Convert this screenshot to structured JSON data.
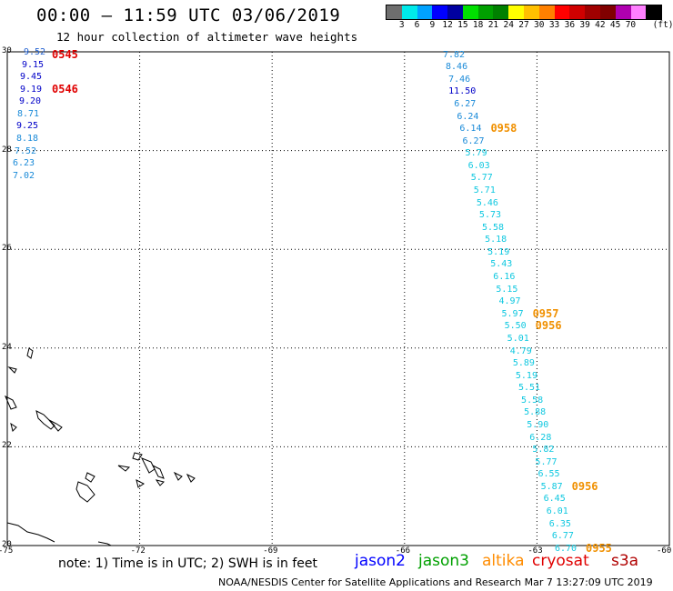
{
  "header": {
    "title": "00:00 – 11:59 UTC 03/06/2019",
    "subtitle": "12 hour collection of altimeter wave heights"
  },
  "colorbar": {
    "colors": [
      "#6e6e6e",
      "#00eaea",
      "#00a2ff",
      "#0000ff",
      "#0000a0",
      "#00e000",
      "#00a000",
      "#008000",
      "#ffff00",
      "#ffc000",
      "#ff8000",
      "#ff0000",
      "#d00000",
      "#a00000",
      "#800000",
      "#b000b0",
      "#ff80ff",
      "#000000"
    ],
    "labels": [
      "3",
      "6",
      "9",
      "12",
      "15",
      "18",
      "21",
      "24",
      "27",
      "30",
      "33",
      "36",
      "39",
      "42",
      "45",
      "70"
    ],
    "unit": "(ft)"
  },
  "axes": {
    "lat_labels": [
      "30",
      "28",
      "26",
      "24",
      "22",
      "20"
    ],
    "lon_labels": [
      "-75",
      "-72",
      "-69",
      "-66",
      "-63",
      "-60"
    ]
  },
  "tracks": {
    "track_west": {
      "points": [
        {
          "lat": 30.0,
          "swh": "9.52",
          "color": "#2060d0"
        },
        {
          "lat": 29.75,
          "swh": "9.15",
          "color": "#0000c8"
        },
        {
          "lat": 29.5,
          "swh": "9.45",
          "color": "#0000c8"
        },
        {
          "lat": 29.25,
          "swh": "9.19",
          "color": "#0000c8"
        },
        {
          "lat": 29.0,
          "swh": "9.20",
          "color": "#0000c8"
        },
        {
          "lat": 28.75,
          "swh": "8.71",
          "color": "#1a8ad8"
        },
        {
          "lat": 28.5,
          "swh": "9.25",
          "color": "#0000c8"
        },
        {
          "lat": 28.25,
          "swh": "8.18",
          "color": "#1a8ad8"
        },
        {
          "lat": 28.0,
          "swh": "7.52",
          "color": "#1a8ad8"
        },
        {
          "lat": 27.75,
          "swh": "6.23",
          "color": "#1a8ad8"
        },
        {
          "lat": 27.5,
          "swh": "7.02",
          "color": "#1a8ad8"
        }
      ],
      "times": [
        {
          "label": "0545",
          "lat": 29.95,
          "color": "#e00000"
        },
        {
          "label": "0546",
          "lat": 29.25,
          "color": "#e00000"
        }
      ]
    },
    "track_east": {
      "points": [
        {
          "lat": 29.95,
          "swh": "7.82",
          "color": "#1a8ad8"
        },
        {
          "lat": 29.7,
          "swh": "8.46",
          "color": "#1a8ad8"
        },
        {
          "lat": 29.45,
          "swh": "7.46",
          "color": "#1a8ad8"
        },
        {
          "lat": 29.2,
          "swh": "11.50",
          "color": "#0000c8"
        },
        {
          "lat": 28.95,
          "swh": "6.27",
          "color": "#1a8ad8"
        },
        {
          "lat": 28.7,
          "swh": "6.24",
          "color": "#1a8ad8"
        },
        {
          "lat": 28.45,
          "swh": "6.14",
          "color": "#1a8ad8"
        },
        {
          "lat": 28.2,
          "swh": "6.27",
          "color": "#1a8ad8"
        },
        {
          "lat": 27.95,
          "swh": "5.79",
          "color": "#10c8e0"
        },
        {
          "lat": 27.7,
          "swh": "6.03",
          "color": "#10c8e0"
        },
        {
          "lat": 27.45,
          "swh": "5.77",
          "color": "#10c8e0"
        },
        {
          "lat": 27.2,
          "swh": "5.71",
          "color": "#10c8e0"
        },
        {
          "lat": 26.95,
          "swh": "5.46",
          "color": "#10c8e0"
        },
        {
          "lat": 26.7,
          "swh": "5.73",
          "color": "#10c8e0"
        },
        {
          "lat": 26.45,
          "swh": "5.58",
          "color": "#10c8e0"
        },
        {
          "lat": 26.2,
          "swh": "5.18",
          "color": "#10c8e0"
        },
        {
          "lat": 25.95,
          "swh": "5.19",
          "color": "#10c8e0"
        },
        {
          "lat": 25.7,
          "swh": "5.43",
          "color": "#10c8e0"
        },
        {
          "lat": 25.45,
          "swh": "6.16",
          "color": "#10c8e0"
        },
        {
          "lat": 25.2,
          "swh": "5.15",
          "color": "#10c8e0"
        },
        {
          "lat": 24.95,
          "swh": "4.97",
          "color": "#10c8e0"
        },
        {
          "lat": 24.7,
          "swh": "5.97",
          "color": "#10c8e0"
        },
        {
          "lat": 24.45,
          "swh": "5.50",
          "color": "#10c8e0"
        },
        {
          "lat": 24.2,
          "swh": "5.01",
          "color": "#10c8e0"
        },
        {
          "lat": 23.95,
          "swh": "4.79",
          "color": "#10c8e0"
        },
        {
          "lat": 23.7,
          "swh": "5.89",
          "color": "#10c8e0"
        },
        {
          "lat": 23.45,
          "swh": "5.19",
          "color": "#10c8e0"
        },
        {
          "lat": 23.2,
          "swh": "5.51",
          "color": "#10c8e0"
        },
        {
          "lat": 22.95,
          "swh": "5.58",
          "color": "#10c8e0"
        },
        {
          "lat": 22.7,
          "swh": "5.88",
          "color": "#10c8e0"
        },
        {
          "lat": 22.45,
          "swh": "5.90",
          "color": "#10c8e0"
        },
        {
          "lat": 22.2,
          "swh": "6.28",
          "color": "#10c8e0"
        },
        {
          "lat": 21.95,
          "swh": "5.82",
          "color": "#10c8e0"
        },
        {
          "lat": 21.7,
          "swh": "5.77",
          "color": "#10c8e0"
        },
        {
          "lat": 21.45,
          "swh": "6.55",
          "color": "#10c8e0"
        },
        {
          "lat": 21.2,
          "swh": "5.87",
          "color": "#10c8e0"
        },
        {
          "lat": 20.95,
          "swh": "6.45",
          "color": "#10c8e0"
        },
        {
          "lat": 20.7,
          "swh": "6.01",
          "color": "#10c8e0"
        },
        {
          "lat": 20.45,
          "swh": "6.35",
          "color": "#10c8e0"
        },
        {
          "lat": 20.2,
          "swh": "6.77",
          "color": "#10c8e0"
        },
        {
          "lat": 19.95,
          "swh": "6.70",
          "color": "#10c8e0"
        }
      ],
      "times": [
        {
          "label": "0958",
          "lat": 28.45,
          "color": "#f09000"
        },
        {
          "label": "0957",
          "lat": 24.7,
          "color": "#f09000"
        },
        {
          "label": "0956",
          "lat": 24.45,
          "color": "#f09000"
        },
        {
          "label": "0956",
          "lat": 21.2,
          "color": "#f09000"
        },
        {
          "label": "0955",
          "lat": 19.95,
          "color": "#f09000"
        }
      ]
    }
  },
  "footer": {
    "note": "note:  1) Time is in UTC;  2) SWH is in feet",
    "satellites": [
      {
        "name": "jason2",
        "color": "#0000ff"
      },
      {
        "name": "jason3",
        "color": "#00a000"
      },
      {
        "name": "altika",
        "color": "#ff8c00"
      },
      {
        "name": "cryosat",
        "color": "#e00000"
      },
      {
        "name": "s3a",
        "color": "#b00000"
      }
    ],
    "credit": "NOAA/NESDIS Center for Satellite Applications and Research     Mar  7 13:27:09 UTC 2019"
  }
}
